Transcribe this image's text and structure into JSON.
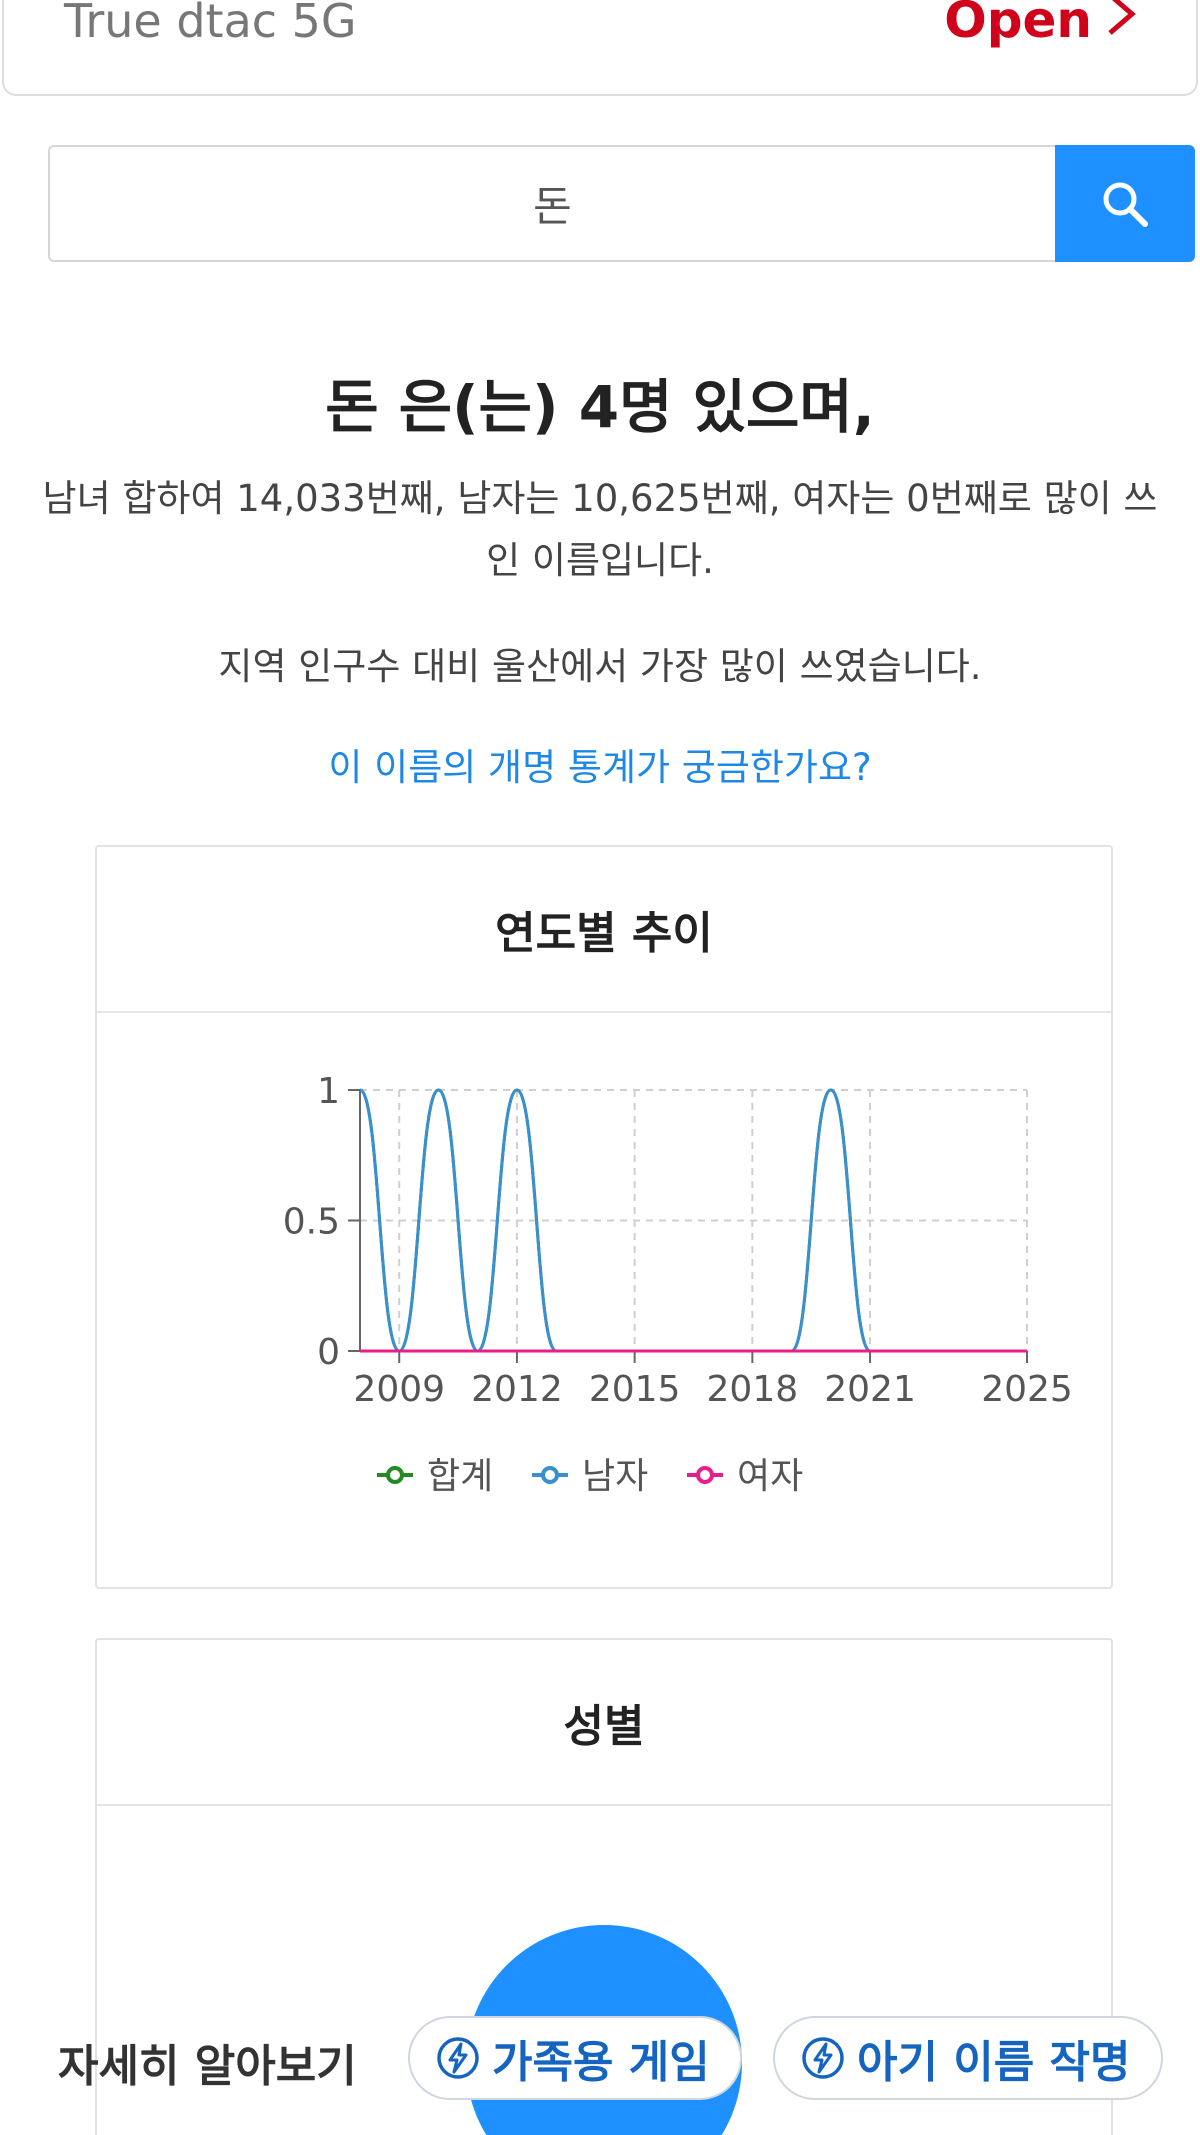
{
  "ad": {
    "title": "True dtac 5G",
    "open_label": "Open"
  },
  "search": {
    "value": "돈",
    "icon": "search-icon"
  },
  "headline": "돈 은(는) 4명 있으며,",
  "summary": "남녀 합하여 14,033번째, 남자는 10,625번째, 여자는 0번째로 많이 쓰인 이름입니다.",
  "region_text": "지역 인구수 대비 울산에서 가장 많이 쓰였습니다.",
  "stat_link": "이 이름의 개명 통계가 궁금한가요?",
  "trend_card": {
    "title": "연도별 추이"
  },
  "gender_card": {
    "title": "성별"
  },
  "chart_data": {
    "type": "line",
    "x": [
      2008,
      2009,
      2010,
      2011,
      2012,
      2013,
      2014,
      2015,
      2016,
      2017,
      2018,
      2019,
      2020,
      2021,
      2022,
      2023,
      2024,
      2025
    ],
    "series": [
      {
        "name": "합계",
        "color": "#228b22",
        "values": [
          1,
          0,
          1,
          0,
          1,
          0,
          0,
          0,
          0,
          0,
          0,
          0,
          1,
          0,
          0,
          0,
          0,
          0
        ]
      },
      {
        "name": "남자",
        "color": "#3a8fd0",
        "values": [
          1,
          0,
          1,
          0,
          1,
          0,
          0,
          0,
          0,
          0,
          0,
          0,
          1,
          0,
          0,
          0,
          0,
          0
        ]
      },
      {
        "name": "여자",
        "color": "#e91e8c",
        "values": [
          0,
          0,
          0,
          0,
          0,
          0,
          0,
          0,
          0,
          0,
          0,
          0,
          0,
          0,
          0,
          0,
          0,
          0
        ]
      }
    ],
    "x_ticks": [
      "2009",
      "2012",
      "2015",
      "2018",
      "2021",
      "2025"
    ],
    "y_ticks": [
      "0",
      "0.5",
      "1"
    ],
    "ylim": [
      0,
      1
    ],
    "grid": true,
    "legend": "bottom"
  },
  "bottom_bar": {
    "more_label": "자세히 알아보기",
    "family_game": "가족용 게임",
    "baby_name": "아기 이름 작명"
  }
}
